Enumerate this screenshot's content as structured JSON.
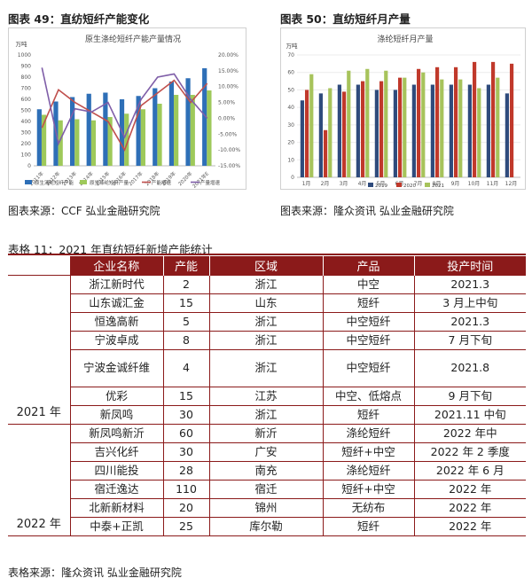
{
  "fig49": {
    "label": "图表  49：直纺短纤产能变化",
    "chart_data": {
      "type": "bar",
      "title": "原生涤纶短纤产能产量情况",
      "ylabel_left": "万吨",
      "categories": [
        "2011年",
        "2012年",
        "2013年",
        "2014年",
        "2015年",
        "2016年",
        "2017年",
        "2018年",
        "2019年",
        "2020年",
        "2021年E"
      ],
      "ylim_left": [
        0,
        1000
      ],
      "ylim_right": [
        -15,
        20
      ],
      "left_ticks": [
        "1000",
        "900",
        "800",
        "700",
        "600",
        "500",
        "400",
        "300",
        "200",
        "100",
        "0"
      ],
      "right_ticks": [
        "20.00%",
        "15.00%",
        "10.00%",
        "5.00%",
        "0.00%",
        "-5.00%",
        "-10.00%",
        "-15.00%"
      ],
      "series": [
        {
          "name": "原生涤纶短纤产能",
          "type": "bar",
          "axis": "left",
          "color": "#2e6fb7",
          "values": [
            510,
            580,
            620,
            650,
            660,
            600,
            630,
            700,
            760,
            790,
            880
          ]
        },
        {
          "name": "原生涤纶短纤产量",
          "type": "bar",
          "axis": "left",
          "color": "#9ec95a",
          "values": [
            460,
            410,
            420,
            410,
            440,
            470,
            510,
            560,
            640,
            640,
            680
          ]
        },
        {
          "name": "产能增速",
          "type": "line",
          "axis": "right",
          "color": "#c0504d",
          "values": [
            -3,
            9,
            5,
            2,
            -1,
            -10,
            4,
            8,
            12,
            5,
            11
          ]
        },
        {
          "name": "产量增速",
          "type": "line",
          "axis": "right",
          "color": "#7f5ea8",
          "values": [
            16,
            -8,
            3,
            2,
            5,
            -6,
            6,
            13,
            14,
            6,
            0
          ]
        }
      ],
      "legend": "bottom"
    }
  },
  "fig50": {
    "label": "图表  50：直纺短纤月产量",
    "chart_data": {
      "type": "bar",
      "title": "涤纶短纤月产量",
      "ylabel": "万吨",
      "categories": [
        "1月",
        "2月",
        "3月",
        "4月",
        "5月",
        "6月",
        "7月",
        "8月",
        "9月",
        "10月",
        "11月",
        "12月"
      ],
      "ylim": [
        0,
        70
      ],
      "ticks": [
        "70",
        "60",
        "50",
        "40",
        "30",
        "20",
        "10",
        "0"
      ],
      "series": [
        {
          "name": "2019",
          "color": "#2f4b7c",
          "values": [
            44,
            48,
            53,
            53,
            50,
            50,
            53,
            53,
            53,
            53,
            53,
            48
          ]
        },
        {
          "name": "2020",
          "color": "#c0392b",
          "values": [
            50,
            27,
            49,
            55,
            55,
            57,
            62,
            63,
            63,
            66,
            66,
            65
          ]
        },
        {
          "name": "2021",
          "color": "#a7c35b",
          "values": [
            59,
            51,
            61,
            62,
            61,
            57,
            60,
            56,
            56,
            51,
            57,
            0
          ]
        }
      ],
      "legend": "bottom"
    }
  },
  "source_charts_left": "图表来源：CCF 弘业金融研究院",
  "source_charts_right": "图表来源：隆众资讯  弘业金融研究院",
  "table": {
    "title": "表格  11：2021 年直纺短纤新增产能统计",
    "headers": [
      "企业名称",
      "产能",
      "区域",
      "产品",
      "投产时间"
    ],
    "group_2021": "2021 年",
    "group_2022": "2022 年",
    "rows_2021": [
      [
        "浙江新时代",
        "2",
        "浙江",
        "中空",
        "2021.3"
      ],
      [
        "山东诚汇金",
        "15",
        "山东",
        "短纤",
        "3 月上中旬"
      ],
      [
        "恒逸高新",
        "5",
        "浙江",
        "中空短纤",
        "2021.3"
      ],
      [
        "宁波卓成",
        "8",
        "浙江",
        "中空短纤",
        "7 月下旬"
      ],
      [
        "宁波金诚纤维",
        "4",
        "浙江",
        "中空短纤",
        "2021.8"
      ],
      [
        "优彩",
        "15",
        "江苏",
        "中空、低熔点",
        "9 月下旬"
      ],
      [
        "新凤鸣",
        "30",
        "浙江",
        "短纤",
        "2021.11 中旬"
      ]
    ],
    "rows_2022": [
      [
        "新凤鸣新沂",
        "60",
        "新沂",
        "涤纶短纤",
        "2022 年中"
      ],
      [
        "吉兴化纤",
        "30",
        "广安",
        "短纤+中空",
        "2022 年 2 季度"
      ],
      [
        "四川能投",
        "28",
        "南充",
        "涤纶短纤",
        "2022 年 6 月"
      ],
      [
        "宿迁逸达",
        "110",
        "宿迁",
        "短纤+中空",
        "2022 年"
      ],
      [
        "北新新材料",
        "20",
        "锦州",
        "无纺布",
        "2022 年"
      ],
      [
        "中泰+正凯",
        "25",
        "库尔勒",
        "短纤",
        "2022 年"
      ]
    ],
    "source": "表格来源：隆众资讯  弘业金融研究院"
  }
}
